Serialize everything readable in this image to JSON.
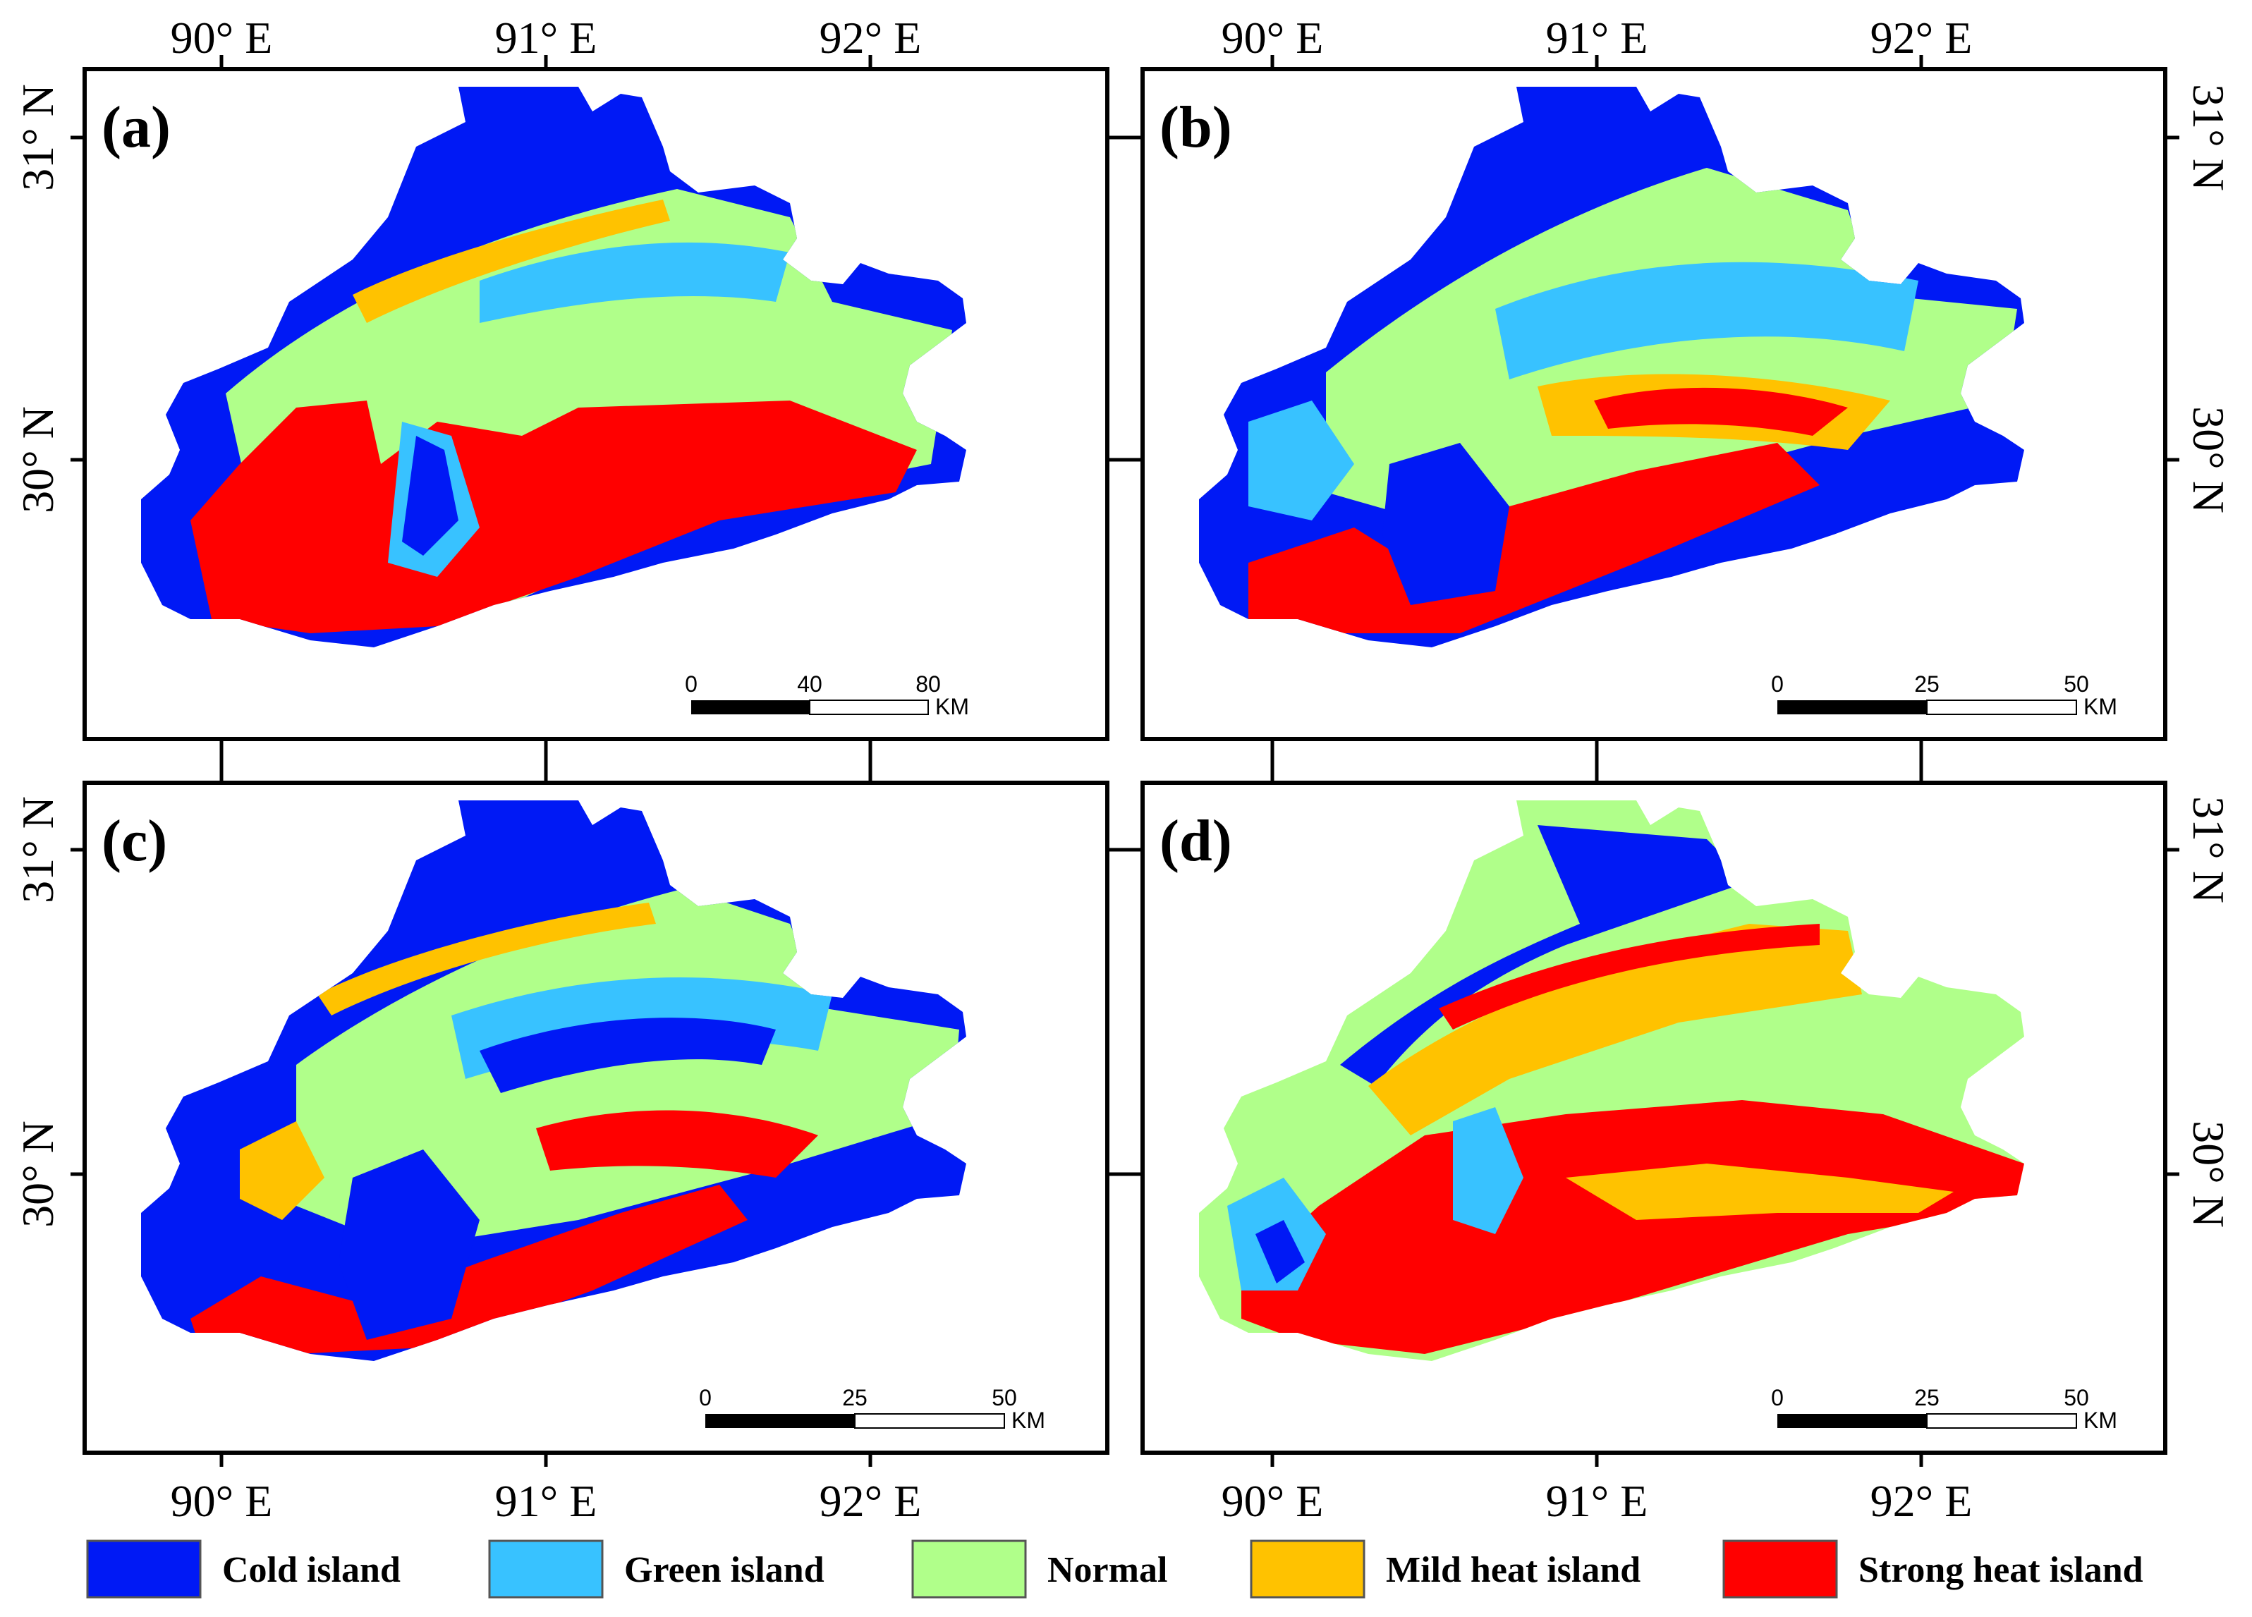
{
  "legend": [
    {
      "key": "cold",
      "label": "Cold island",
      "color": "#0019F5"
    },
    {
      "key": "green",
      "label": "Green island",
      "color": "#38C2FF"
    },
    {
      "key": "normal",
      "label": "Normal",
      "color": "#B0FF8A"
    },
    {
      "key": "mild",
      "label": "Mild heat island",
      "color": "#FFC200"
    },
    {
      "key": "strong",
      "label": "Strong heat island",
      "color": "#FF0000"
    }
  ],
  "axes": {
    "lon_labels": [
      "90° E",
      "91° E",
      "92° E"
    ],
    "lat_labels": [
      "31° N",
      "30° N"
    ]
  },
  "panels": [
    {
      "id": "a",
      "label": "(a)",
      "scale_ticks": [
        "0",
        "40",
        "80"
      ],
      "scale_unit": "KM",
      "dominant": [
        "cold",
        "normal",
        "strong",
        "green",
        "mild"
      ]
    },
    {
      "id": "b",
      "label": "(b)",
      "scale_ticks": [
        "0",
        "25",
        "50"
      ],
      "scale_unit": "KM",
      "dominant": [
        "cold",
        "normal",
        "green",
        "strong",
        "mild"
      ]
    },
    {
      "id": "c",
      "label": "(c)",
      "scale_ticks": [
        "0",
        "25",
        "50"
      ],
      "scale_unit": "KM",
      "dominant": [
        "cold",
        "normal",
        "green",
        "strong",
        "mild"
      ]
    },
    {
      "id": "d",
      "label": "(d)",
      "scale_ticks": [
        "0",
        "25",
        "50"
      ],
      "scale_unit": "KM",
      "dominant": [
        "strong",
        "normal",
        "mild",
        "green",
        "cold"
      ]
    }
  ]
}
